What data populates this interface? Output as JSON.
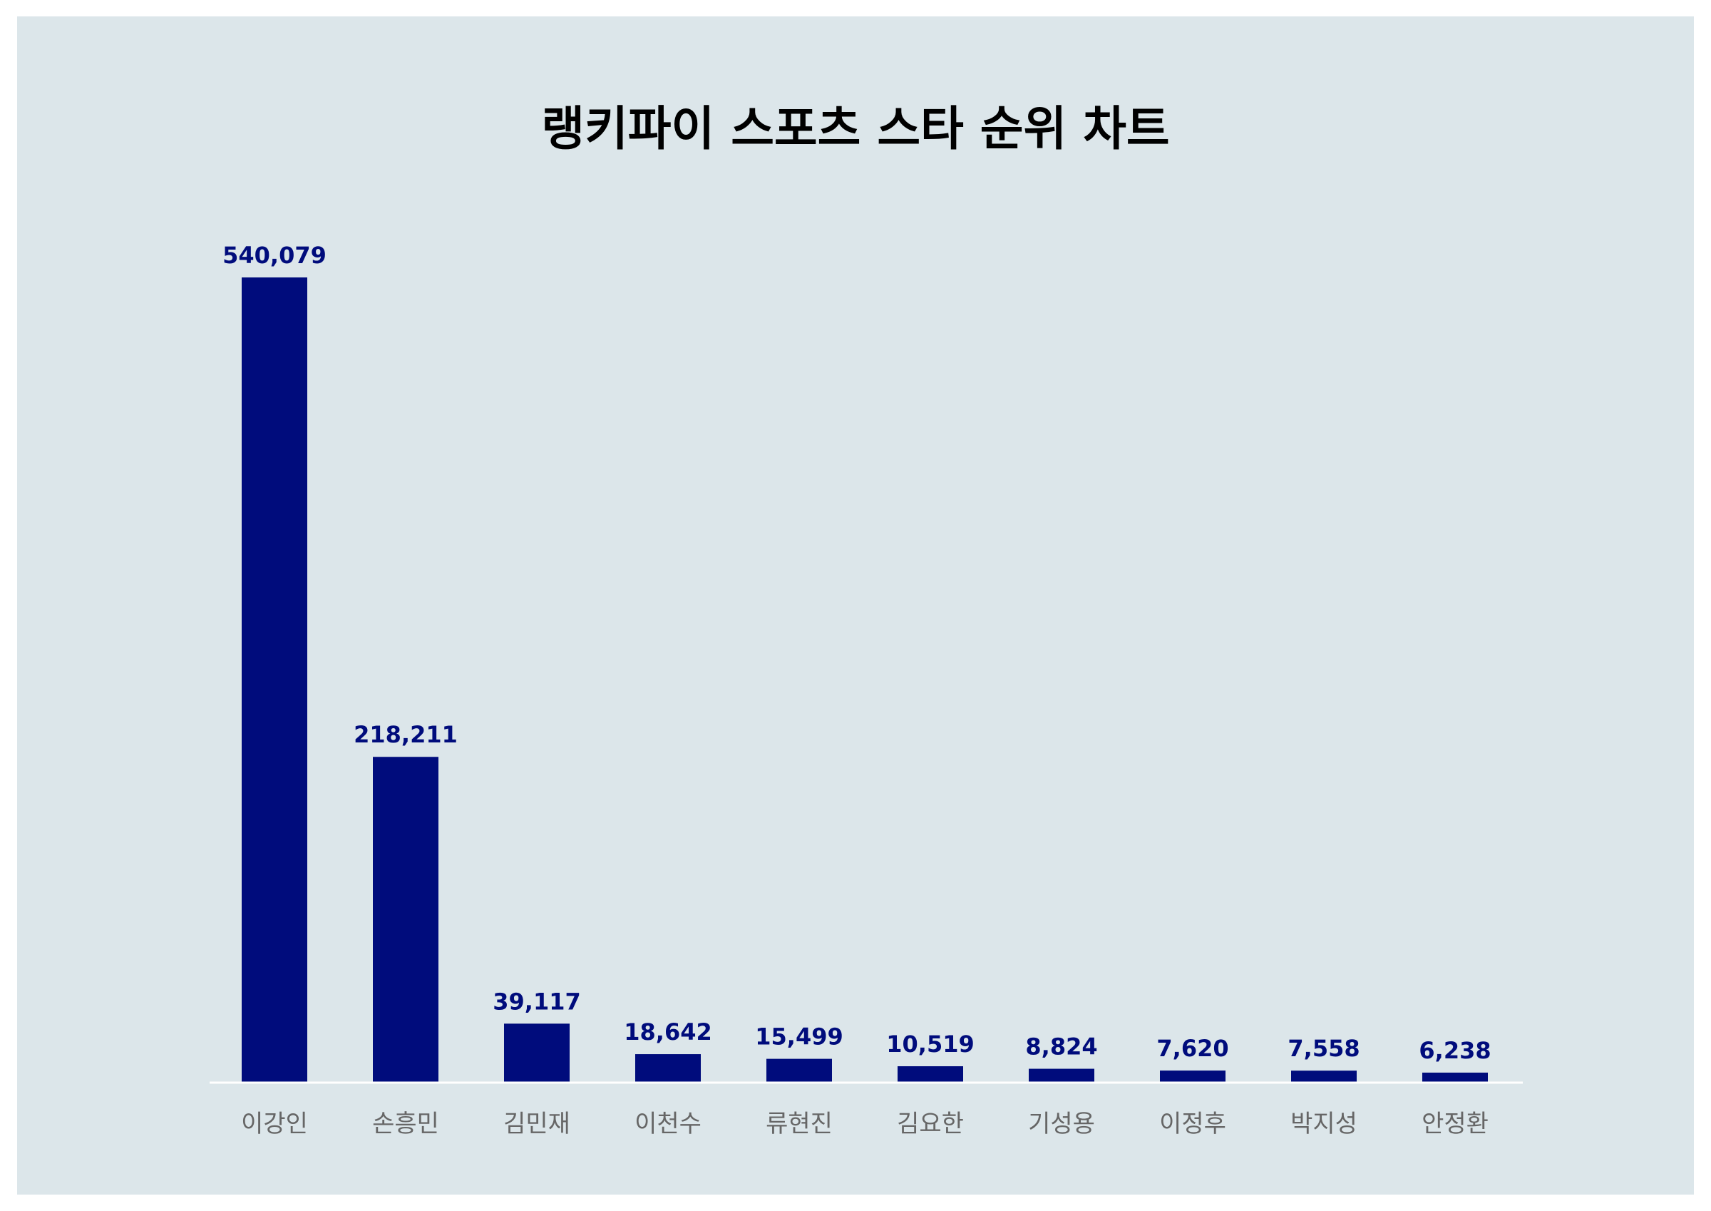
{
  "colors": {
    "background": "#dce6ea",
    "bar": "#000c7c",
    "value_label": "#000c7c",
    "category_label": "#666666",
    "baseline": "#ffffff"
  },
  "chart_data": {
    "type": "bar",
    "title": "랭키파이 스포츠 스타 순위 차트",
    "xlabel": "",
    "ylabel": "",
    "categories": [
      "이강인",
      "손흥민",
      "김민재",
      "이천수",
      "류현진",
      "김요한",
      "기성용",
      "이정후",
      "박지성",
      "안정환"
    ],
    "values": [
      540079,
      218211,
      39117,
      18642,
      15499,
      10519,
      8824,
      7620,
      7558,
      6238
    ],
    "value_labels": [
      "540,079",
      "218,211",
      "39,117",
      "18,642",
      "15,499",
      "10,519",
      "8,824",
      "7,620",
      "7,558",
      "6,238"
    ],
    "ylim": [
      0,
      540079
    ],
    "grid": false,
    "legend": "none"
  }
}
